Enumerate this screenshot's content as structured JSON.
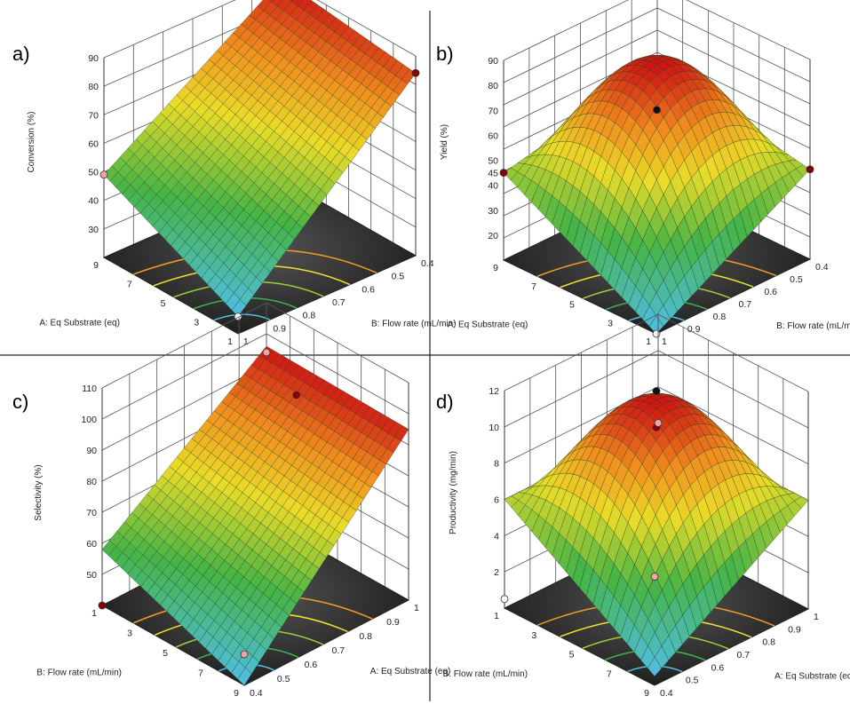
{
  "chart_data": [
    {
      "type": "surface3d",
      "panel": "a)",
      "zlabel": "Conversion (%)",
      "xlabel": "A: Eq Substrate (eq)",
      "ylabel": "B: Flow rate (mL/min)",
      "x_ticks": [
        "9",
        "7",
        "5",
        "3",
        "1"
      ],
      "y_ticks": [
        "0.4",
        "0.5",
        "0.6",
        "0.7",
        "0.8",
        "0.9",
        "1"
      ],
      "z_ticks": [
        "30",
        "40",
        "50",
        "60",
        "70",
        "80",
        "90"
      ],
      "xlim": [
        1,
        9
      ],
      "ylim": [
        0.4,
        1
      ],
      "zlim": [
        20,
        90
      ],
      "model": "planar: highest at low flow rate, independent of Eq Substrate",
      "corners": [
        {
          "A": 9,
          "B": 0.4,
          "value": 90
        },
        {
          "A": 1,
          "B": 0.4,
          "value": 84
        },
        {
          "A": 9,
          "B": 1,
          "value": 49
        },
        {
          "A": 1,
          "B": 1,
          "value": 26
        }
      ],
      "design_points": [
        {
          "A": 9,
          "B": 0.4,
          "value": 90,
          "color": "#8b0000"
        },
        {
          "A": 1,
          "B": 0.4,
          "value": 84,
          "color": "#8b0000"
        },
        {
          "A": 9,
          "B": 1,
          "value": 49,
          "color": "#f3a3a3"
        },
        {
          "A": 1,
          "B": 1,
          "value": 26,
          "color": "#ffffff"
        }
      ]
    },
    {
      "type": "surface3d",
      "panel": "b)",
      "zlabel": "Yield (%)",
      "xlabel": "A: Eq Substrate (eq)",
      "ylabel": "B: Flow rate (mL/min)",
      "x_ticks": [
        "9",
        "7",
        "5",
        "3",
        "1"
      ],
      "y_ticks": [
        "0.4",
        "0.5",
        "0.6",
        "0.7",
        "0.8",
        "0.9",
        "1"
      ],
      "z_ticks": [
        "20",
        "30",
        "40",
        "45",
        "50",
        "60",
        "70",
        "80",
        "90"
      ],
      "xlim": [
        1,
        9
      ],
      "ylim": [
        0.4,
        1
      ],
      "zlim": [
        10,
        90
      ],
      "model": "quadratic dome",
      "center_value": 84,
      "corners": [
        {
          "A": 9,
          "B": 0.4,
          "value": 58
        },
        {
          "A": 1,
          "B": 0.4,
          "value": 46
        },
        {
          "A": 9,
          "B": 1,
          "value": 45
        },
        {
          "A": 1,
          "B": 1,
          "value": 10
        }
      ],
      "design_points": [
        {
          "A": 5,
          "B": 0.7,
          "value": 70,
          "color": "#111111"
        },
        {
          "A": 9,
          "B": 1,
          "value": 45,
          "color": "#8b0000"
        },
        {
          "A": 1,
          "B": 0.4,
          "value": 46,
          "color": "#8b0000"
        },
        {
          "A": 1,
          "B": 1,
          "value": 10,
          "color": "#ffffff"
        }
      ]
    },
    {
      "type": "surface3d",
      "panel": "c)",
      "zlabel": "Selectivity (%)",
      "xlabel": "A: Eq Substrate (eq)",
      "ylabel": "B: Flow rate (mL/min)",
      "x_ticks": [
        "1",
        "3",
        "5",
        "7",
        "9"
      ],
      "y_ticks": [
        "1",
        "0.9",
        "0.8",
        "0.7",
        "0.6",
        "0.5",
        "0.4"
      ],
      "z_ticks": [
        "50",
        "60",
        "70",
        "80",
        "90",
        "100",
        "110"
      ],
      "xlim": [
        1,
        9
      ],
      "ylim": [
        0.4,
        1
      ],
      "zlim": [
        40,
        110
      ],
      "model": "ridge along flow rate",
      "corners": [
        {
          "A": 9,
          "B": 1,
          "value": 96
        },
        {
          "A": 1,
          "B": 1,
          "value": 58
        },
        {
          "A": 9,
          "B": 0.4,
          "value": 95
        },
        {
          "A": 1,
          "B": 0.4,
          "value": 40
        }
      ],
      "design_points": [
        {
          "A": 7,
          "B": 0.7,
          "value": 100,
          "color": "#8b0000"
        },
        {
          "A": 9,
          "B": 0.4,
          "value": 94,
          "color": "#f3a3a3"
        },
        {
          "A": 1,
          "B": 1,
          "value": 50,
          "color": "#f3a3a3"
        },
        {
          "A": 1,
          "B": 0.4,
          "value": 40,
          "color": "#8b0000"
        }
      ]
    },
    {
      "type": "surface3d",
      "panel": "d)",
      "zlabel": "Productivity (mg/min)",
      "xlabel": "A: Eq Substrate (eq)",
      "ylabel": "B: Flow rate (mL/min)",
      "x_ticks": [
        "1",
        "3",
        "5",
        "7",
        "9"
      ],
      "y_ticks": [
        "1",
        "0.9",
        "0.8",
        "0.7",
        "0.6",
        "0.5",
        "0.4"
      ],
      "z_ticks": [
        "2",
        "4",
        "6",
        "8",
        "10",
        "12"
      ],
      "xlim": [
        1,
        9
      ],
      "ylim": [
        0.4,
        1
      ],
      "zlim": [
        0,
        12
      ],
      "model": "quadratic dome",
      "center_value": 11,
      "corners": [
        {
          "A": 9,
          "B": 1,
          "value": 6
        },
        {
          "A": 1,
          "B": 1,
          "value": 6
        },
        {
          "A": 9,
          "B": 0.4,
          "value": 6
        },
        {
          "A": 1,
          "B": 0.4,
          "value": 0.5
        }
      ],
      "design_points": [
        {
          "A": 5,
          "B": 0.7,
          "value": 12,
          "color": "#111111"
        },
        {
          "A": 5,
          "B": 0.7,
          "value": 10,
          "color": "#8b0000"
        },
        {
          "A": 9,
          "B": 0.4,
          "value": 6,
          "color": "#f3a3a3"
        },
        {
          "A": 1,
          "B": 1,
          "value": 6,
          "color": "#f3a3a3"
        },
        {
          "A": 1,
          "B": 0.4,
          "value": 0.5,
          "color": "#ffffff"
        }
      ]
    }
  ]
}
